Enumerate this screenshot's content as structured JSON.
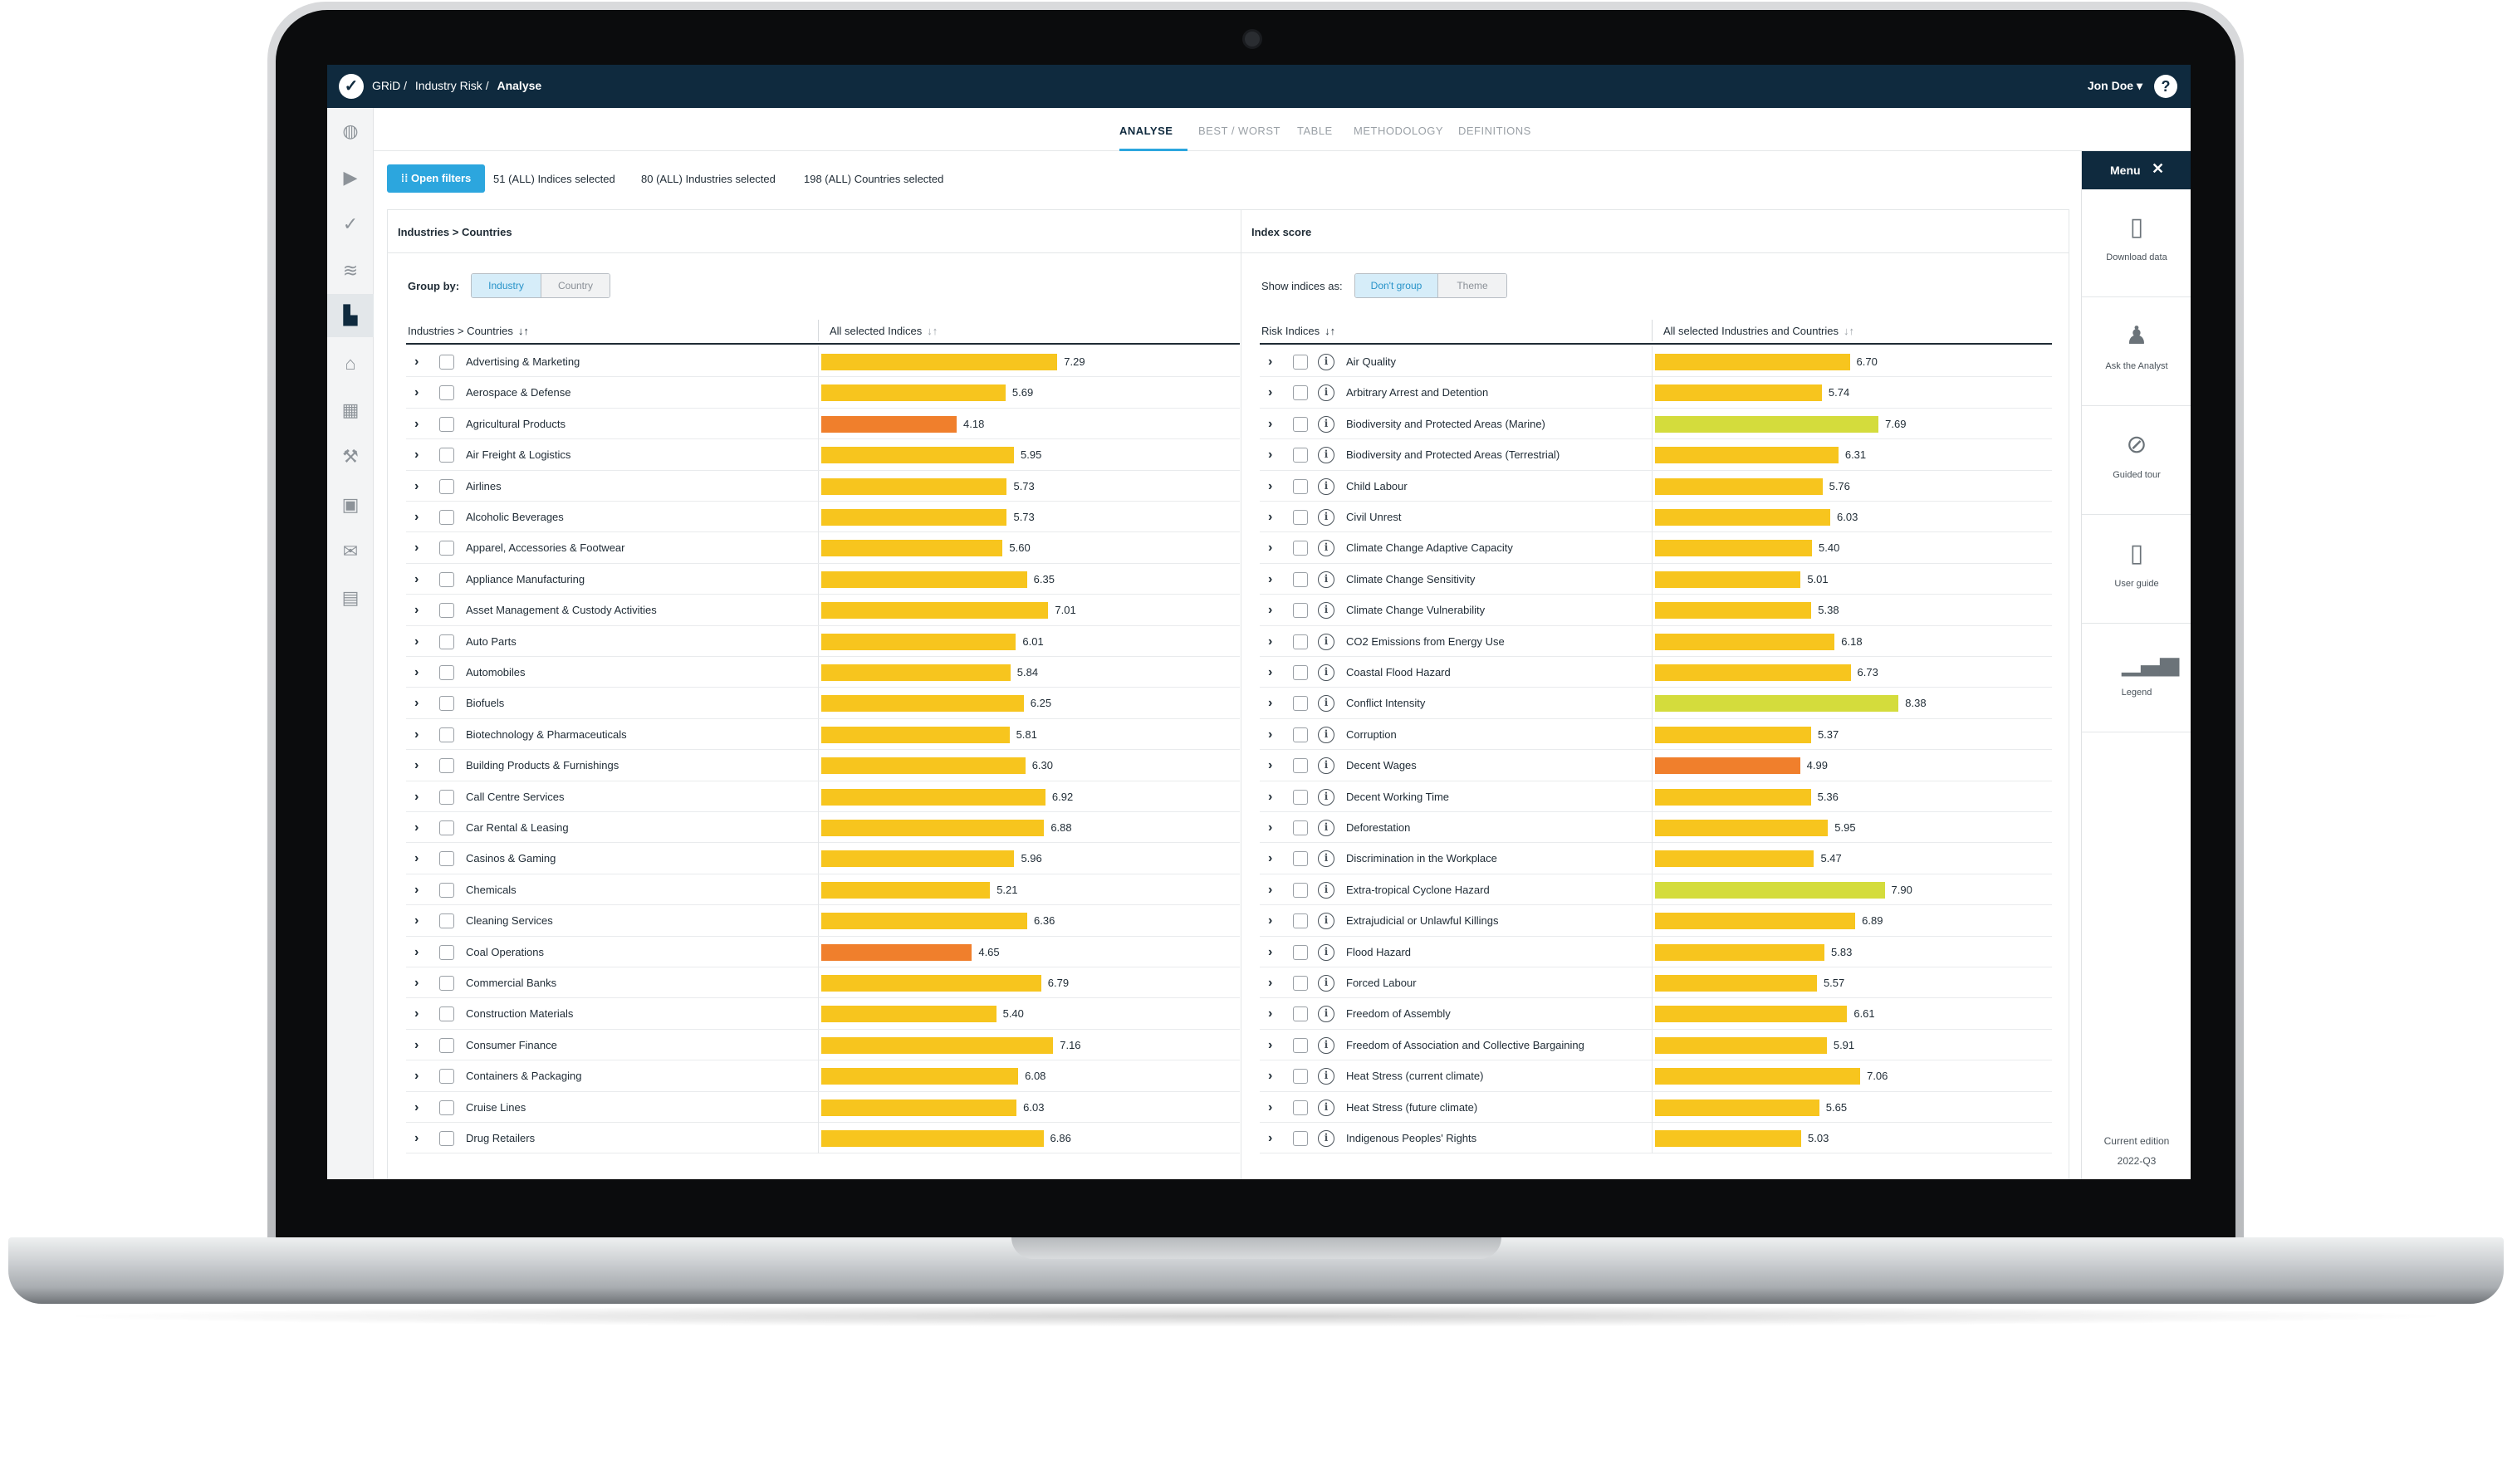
{
  "topbar": {
    "logo_glyph": "✓",
    "breadcrumbs": [
      "GRiD /",
      "Industry Risk /",
      "Analyse"
    ],
    "user_name": "Jon Doe",
    "user_chevron": "▾",
    "help_glyph": "?"
  },
  "leftnav": {
    "icons": [
      {
        "name": "globe-icon",
        "glyph": "◍"
      },
      {
        "name": "video-icon",
        "glyph": "▶"
      },
      {
        "name": "grid-logo-icon",
        "glyph": "✓"
      },
      {
        "name": "handshake-icon",
        "glyph": "≋"
      },
      {
        "name": "industry-chart-icon",
        "glyph": "▙"
      },
      {
        "name": "factory-icon",
        "glyph": "⌂"
      },
      {
        "name": "buildings-icon",
        "glyph": "▦"
      },
      {
        "name": "tools-icon",
        "glyph": "⚒"
      },
      {
        "name": "box-icon",
        "glyph": "▣"
      },
      {
        "name": "envelope-icon",
        "glyph": "✉"
      },
      {
        "name": "calendar-icon",
        "glyph": "▤"
      }
    ],
    "active_index": 4
  },
  "tabs": [
    "ANALYSE",
    "BEST / WORST",
    "TABLE",
    "METHODOLOGY",
    "DEFINITIONS"
  ],
  "filters": {
    "button_label": "Open filters",
    "indices": "51 (ALL) Indices selected",
    "industries": "80 (ALL) Industries selected",
    "countries": "198 (ALL) Countries selected"
  },
  "left_panel": {
    "title": "Industries > Countries",
    "group_label": "Group by:",
    "group_options": [
      "Industry",
      "Country"
    ],
    "col1": "Industries > Countries",
    "col2": "All selected Indices",
    "sort_glyph": "↓↑",
    "chevron": "›",
    "rows": [
      {
        "label": "Advertising & Marketing",
        "value": 7.29,
        "color": "#f7c51e"
      },
      {
        "label": "Aerospace & Defense",
        "value": 5.69,
        "color": "#f7c51e"
      },
      {
        "label": "Agricultural Products",
        "value": 4.18,
        "color": "#f07f2c"
      },
      {
        "label": "Air Freight & Logistics",
        "value": 5.95,
        "color": "#f7c51e"
      },
      {
        "label": "Airlines",
        "value": 5.73,
        "color": "#f7c51e"
      },
      {
        "label": "Alcoholic Beverages",
        "value": 5.73,
        "color": "#f7c51e"
      },
      {
        "label": "Apparel, Accessories & Footwear",
        "value": 5.6,
        "color": "#f7c51e"
      },
      {
        "label": "Appliance Manufacturing",
        "value": 6.35,
        "color": "#f7c51e"
      },
      {
        "label": "Asset Management & Custody Activities",
        "value": 7.01,
        "color": "#f7c51e"
      },
      {
        "label": "Auto Parts",
        "value": 6.01,
        "color": "#f7c51e"
      },
      {
        "label": "Automobiles",
        "value": 5.84,
        "color": "#f7c51e"
      },
      {
        "label": "Biofuels",
        "value": 6.25,
        "color": "#f7c51e"
      },
      {
        "label": "Biotechnology & Pharmaceuticals",
        "value": 5.81,
        "color": "#f7c51e"
      },
      {
        "label": "Building Products & Furnishings",
        "value": 6.3,
        "color": "#f7c51e"
      },
      {
        "label": "Call Centre Services",
        "value": 6.92,
        "color": "#f7c51e"
      },
      {
        "label": "Car Rental & Leasing",
        "value": 6.88,
        "color": "#f7c51e"
      },
      {
        "label": "Casinos & Gaming",
        "value": 5.96,
        "color": "#f7c51e"
      },
      {
        "label": "Chemicals",
        "value": 5.21,
        "color": "#f7c51e"
      },
      {
        "label": "Cleaning Services",
        "value": 6.36,
        "color": "#f7c51e"
      },
      {
        "label": "Coal Operations",
        "value": 4.65,
        "color": "#f07f2c"
      },
      {
        "label": "Commercial Banks",
        "value": 6.79,
        "color": "#f7c51e"
      },
      {
        "label": "Construction Materials",
        "value": 5.4,
        "color": "#f7c51e"
      },
      {
        "label": "Consumer Finance",
        "value": 7.16,
        "color": "#f7c51e"
      },
      {
        "label": "Containers & Packaging",
        "value": 6.08,
        "color": "#f7c51e"
      },
      {
        "label": "Cruise Lines",
        "value": 6.03,
        "color": "#f7c51e"
      },
      {
        "label": "Drug Retailers",
        "value": 6.86,
        "color": "#f7c51e"
      }
    ]
  },
  "right_panel": {
    "title": "Index score",
    "group_label": "Show indices as:",
    "group_options": [
      "Don't group",
      "Theme"
    ],
    "col1": "Risk Indices",
    "col2": "All selected Industries and Countries",
    "sort_glyph": "↓↑",
    "chevron": "›",
    "info_glyph": "i",
    "rows": [
      {
        "label": "Air Quality",
        "value": 6.7,
        "color": "#f7c51e"
      },
      {
        "label": "Arbitrary Arrest and Detention",
        "value": 5.74,
        "color": "#f7c51e"
      },
      {
        "label": "Biodiversity and Protected Areas (Marine)",
        "value": 7.69,
        "color": "#d4dc3c"
      },
      {
        "label": "Biodiversity and Protected Areas (Terrestrial)",
        "value": 6.31,
        "color": "#f7c51e"
      },
      {
        "label": "Child Labour",
        "value": 5.76,
        "color": "#f7c51e"
      },
      {
        "label": "Civil Unrest",
        "value": 6.03,
        "color": "#f7c51e"
      },
      {
        "label": "Climate Change Adaptive Capacity",
        "value": 5.4,
        "color": "#f7c51e"
      },
      {
        "label": "Climate Change Sensitivity",
        "value": 5.01,
        "color": "#f7c51e"
      },
      {
        "label": "Climate Change Vulnerability",
        "value": 5.38,
        "color": "#f7c51e"
      },
      {
        "label": "CO2 Emissions from Energy Use",
        "value": 6.18,
        "color": "#f7c51e"
      },
      {
        "label": "Coastal Flood Hazard",
        "value": 6.73,
        "color": "#f7c51e"
      },
      {
        "label": "Conflict Intensity",
        "value": 8.38,
        "color": "#d4dc3c"
      },
      {
        "label": "Corruption",
        "value": 5.37,
        "color": "#f7c51e"
      },
      {
        "label": "Decent Wages",
        "value": 4.99,
        "color": "#f07f2c"
      },
      {
        "label": "Decent Working Time",
        "value": 5.36,
        "color": "#f7c51e"
      },
      {
        "label": "Deforestation",
        "value": 5.95,
        "color": "#f7c51e"
      },
      {
        "label": "Discrimination in the Workplace",
        "value": 5.47,
        "color": "#f7c51e"
      },
      {
        "label": "Extra-tropical Cyclone Hazard",
        "value": 7.9,
        "color": "#d4dc3c"
      },
      {
        "label": "Extrajudicial or Unlawful Killings",
        "value": 6.89,
        "color": "#f7c51e"
      },
      {
        "label": "Flood Hazard",
        "value": 5.83,
        "color": "#f7c51e"
      },
      {
        "label": "Forced Labour",
        "value": 5.57,
        "color": "#f7c51e"
      },
      {
        "label": "Freedom of Assembly",
        "value": 6.61,
        "color": "#f7c51e"
      },
      {
        "label": "Freedom of Association and Collective Bargaining",
        "value": 5.91,
        "color": "#f7c51e"
      },
      {
        "label": "Heat Stress (current climate)",
        "value": 7.06,
        "color": "#f7c51e"
      },
      {
        "label": "Heat Stress (future climate)",
        "value": 5.65,
        "color": "#f7c51e"
      },
      {
        "label": "Indigenous Peoples' Rights",
        "value": 5.03,
        "color": "#f7c51e"
      }
    ]
  },
  "menu": {
    "title": "Menu",
    "close_glyph": "✕",
    "items": [
      {
        "label": "Download data",
        "icon": "download-data-icon",
        "glyph": "▯"
      },
      {
        "label": "Ask the Analyst",
        "icon": "analyst-icon",
        "glyph": "♟"
      },
      {
        "label": "Guided tour",
        "icon": "guided-tour-icon",
        "glyph": "⊘"
      },
      {
        "label": "User guide",
        "icon": "user-guide-icon",
        "glyph": "▯"
      },
      {
        "label": "Legend",
        "icon": "legend-icon",
        "glyph": "▁▃▅"
      }
    ],
    "edition_label": "Current edition",
    "edition_value": "2022-Q3"
  }
}
